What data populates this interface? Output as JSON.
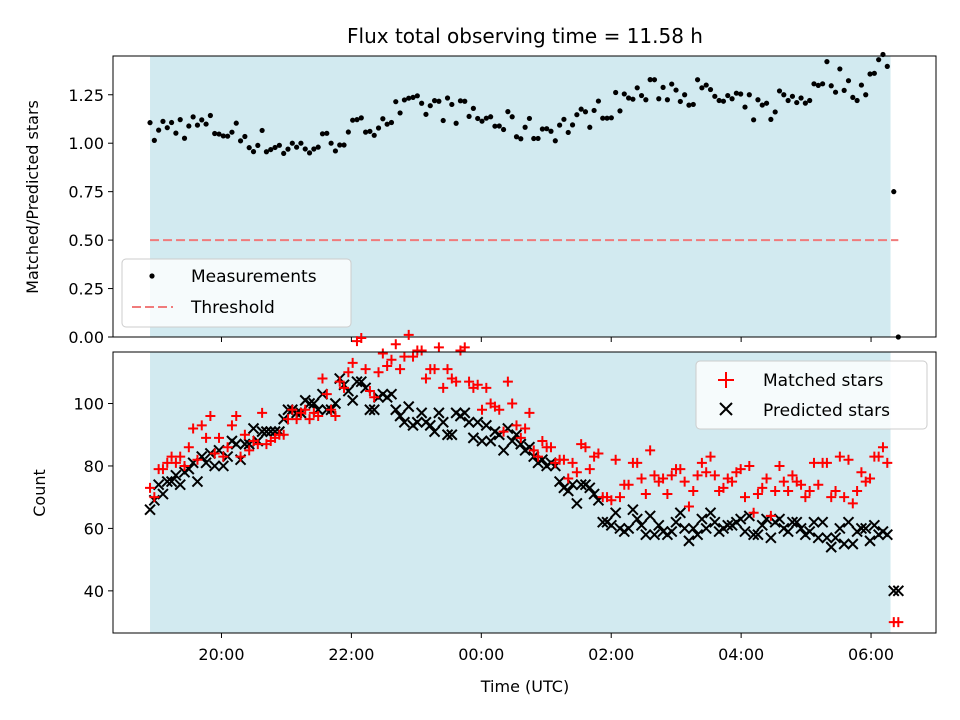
{
  "chart_data": [
    {
      "type": "scatter",
      "title": "Flux total observing time = 11.58 h",
      "ylabel": "Matched/Predicted stars",
      "xlabel": "",
      "ylim": [
        0,
        1.45
      ],
      "yticks": [
        0.0,
        0.25,
        0.5,
        0.75,
        1.0,
        1.25
      ],
      "ytick_labels": [
        "0.00",
        "0.25",
        "0.50",
        "0.75",
        "1.00",
        "1.25"
      ],
      "xlim_hours": [
        18.33,
        31.0
      ],
      "shaded_interval_hours": [
        18.9,
        30.3
      ],
      "shade_color": "#d2eaf0",
      "series": [
        {
          "name": "Measurements",
          "marker": "dot",
          "color": "#000000"
        },
        {
          "name": "Threshold",
          "style": "dashed",
          "color": "#f07b7b",
          "value": 0.5,
          "x_range_hours": [
            18.9,
            30.42
          ]
        }
      ],
      "legend": {
        "position": "lower-left",
        "entries": [
          "Measurements",
          "Threshold"
        ]
      }
    },
    {
      "type": "scatter",
      "title": "",
      "ylabel": "Count",
      "xlabel": "Time (UTC)",
      "ylim": [
        26.5,
        116.5
      ],
      "yticks": [
        40,
        60,
        80,
        100
      ],
      "ytick_labels": [
        "40",
        "60",
        "80",
        "100"
      ],
      "xticks_hours": [
        20,
        22,
        24,
        26,
        28,
        30
      ],
      "xtick_labels": [
        "20:00",
        "22:00",
        "00:00",
        "02:00",
        "04:00",
        "06:00"
      ],
      "series": [
        {
          "name": "Matched stars",
          "marker": "plus",
          "color": "#ff0000"
        },
        {
          "name": "Predicted stars",
          "marker": "x",
          "color": "#000000"
        }
      ],
      "legend": {
        "position": "upper-right",
        "entries": [
          "Matched stars",
          "Predicted stars"
        ]
      }
    }
  ]
}
